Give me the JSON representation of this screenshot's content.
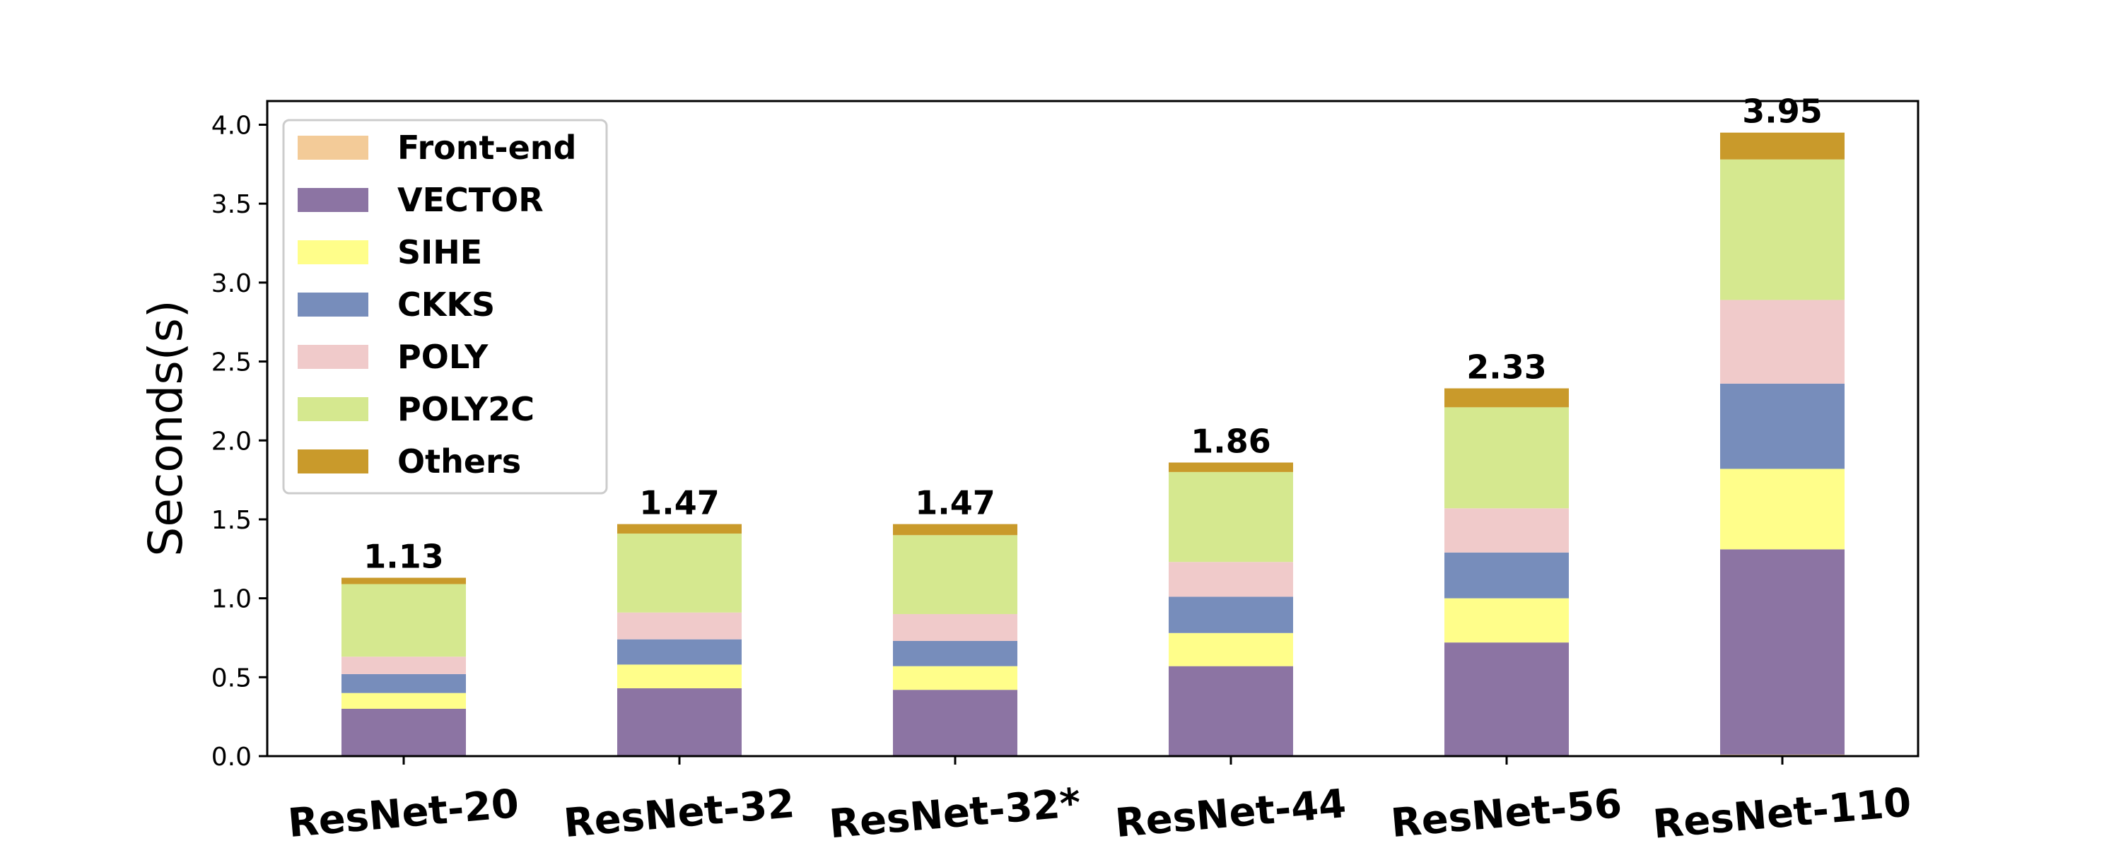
{
  "chart_data": {
    "type": "bar",
    "stacked": true,
    "categories": [
      "ResNet-20",
      "ResNet-32",
      "ResNet-32*",
      "ResNet-44",
      "ResNet-56",
      "ResNet-110"
    ],
    "ylabel": "Seconds(s)",
    "xlabel": "",
    "ylim": [
      0,
      4.15
    ],
    "yticks": [
      "0.0",
      "0.5",
      "1.0",
      "1.5",
      "2.0",
      "2.5",
      "3.0",
      "3.5",
      "4.0"
    ],
    "grid": false,
    "legend_position": "top-left",
    "series": [
      {
        "name": "Front-end",
        "color": "#F3CB98",
        "values": [
          0.0,
          0.0,
          0.0,
          0.0,
          0.0,
          0.01
        ]
      },
      {
        "name": "VECTOR",
        "color": "#8C74A3",
        "values": [
          0.3,
          0.43,
          0.42,
          0.57,
          0.72,
          1.3
        ]
      },
      {
        "name": "SIHE",
        "color": "#FFFE8A",
        "values": [
          0.1,
          0.15,
          0.15,
          0.21,
          0.28,
          0.51
        ]
      },
      {
        "name": "CKKS",
        "color": "#778DBB",
        "values": [
          0.12,
          0.16,
          0.16,
          0.23,
          0.29,
          0.54
        ]
      },
      {
        "name": "POLY",
        "color": "#F0CACA",
        "values": [
          0.11,
          0.17,
          0.17,
          0.22,
          0.28,
          0.53
        ]
      },
      {
        "name": "POLY2C",
        "color": "#D5E88F",
        "values": [
          0.46,
          0.5,
          0.5,
          0.57,
          0.64,
          0.89
        ]
      },
      {
        "name": "Others",
        "color": "#C99A2B",
        "values": [
          0.04,
          0.06,
          0.07,
          0.06,
          0.12,
          0.17
        ]
      }
    ],
    "totals": [
      "1.13",
      "1.47",
      "1.47",
      "1.86",
      "2.33",
      "3.95"
    ]
  }
}
